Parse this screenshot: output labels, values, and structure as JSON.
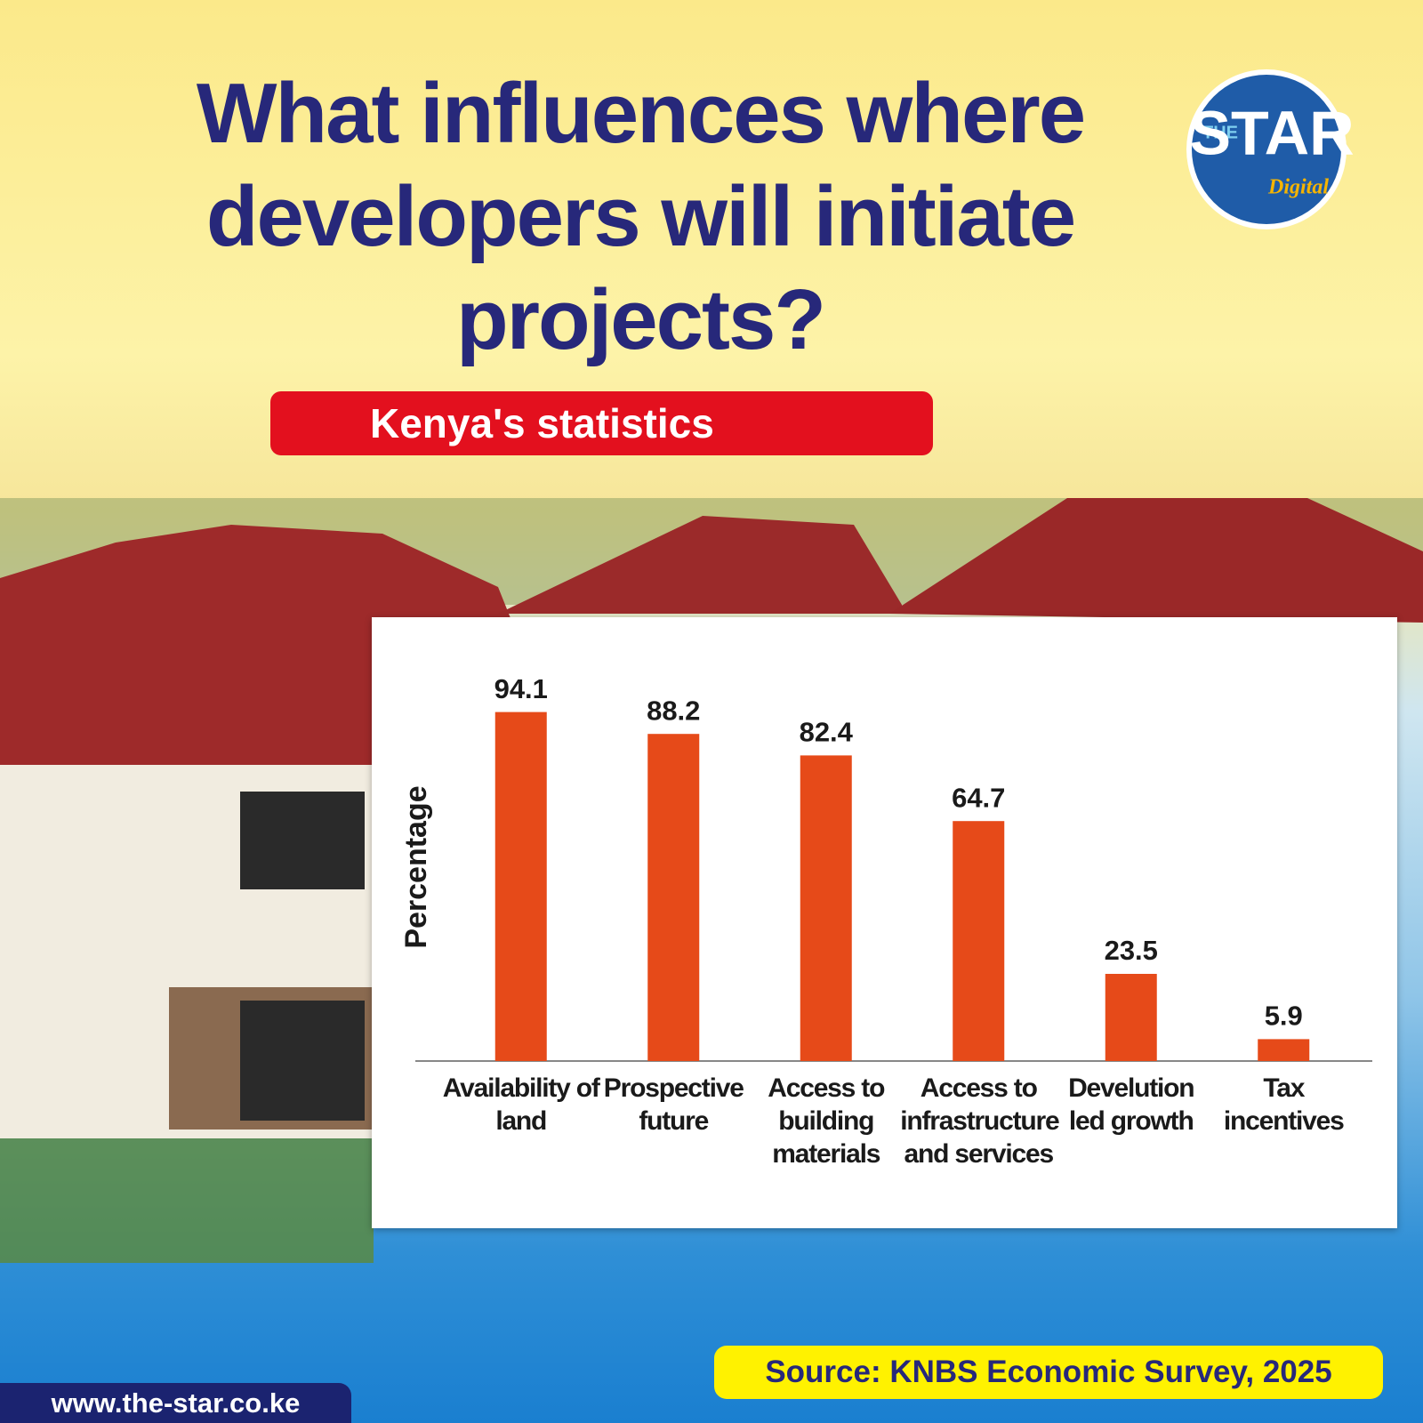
{
  "chart_data": {
    "type": "bar",
    "title": "What influences where developers will initiate projects?",
    "subtitle": "Kenya's statistics",
    "y_label": "Percentage",
    "categories": [
      "Availability of land",
      "Prospective future",
      "Access to building materials",
      "Access to infrastructure and services",
      "Develution led growth",
      "Tax incentives"
    ],
    "values": [
      94.1,
      88.2,
      82.4,
      64.7,
      23.5,
      5.9
    ],
    "color": "#e64a19",
    "ylim": [
      0,
      100
    ],
    "source": "Source: KNBS Economic Survey, 2025",
    "website": "www.the-star.co.ke",
    "logo": {
      "the": "THE",
      "star": "STAR",
      "digital": "Digital"
    }
  }
}
